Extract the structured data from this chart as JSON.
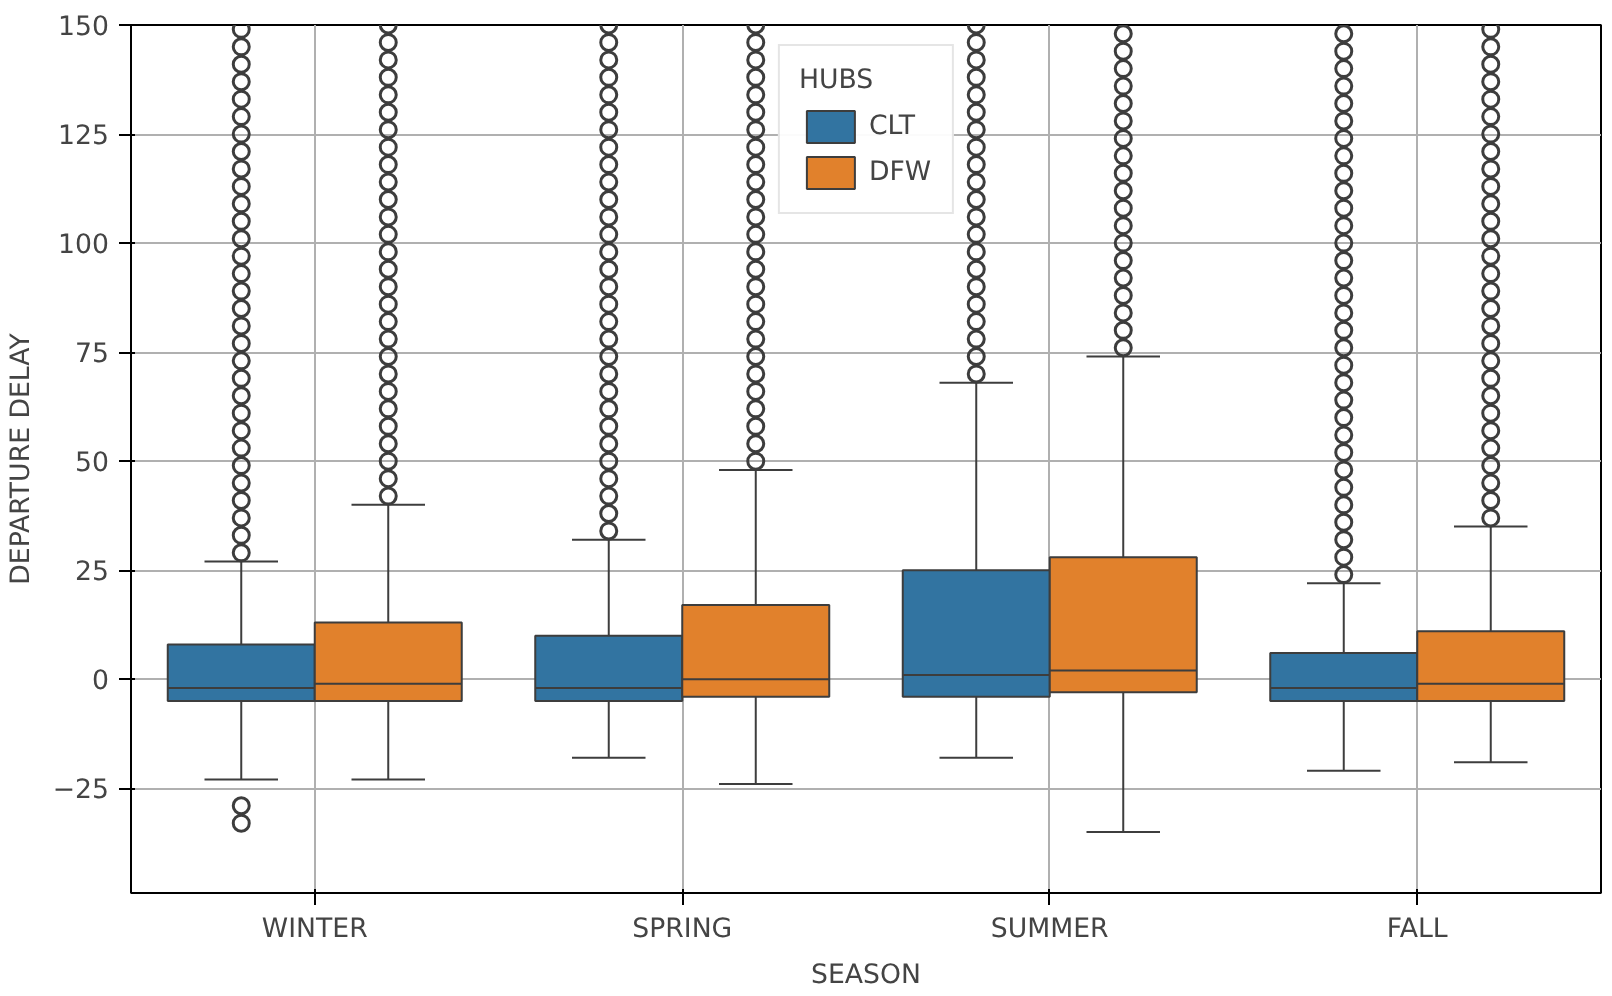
{
  "chart_data": {
    "type": "box",
    "xlabel": "SEASON",
    "ylabel": "DEPARTURE DELAY",
    "legend_title": "HUBS",
    "legend": "top",
    "grid": true,
    "categories": [
      "WINTER",
      "SPRING",
      "SUMMER",
      "FALL"
    ],
    "ylim": [
      -49,
      150
    ],
    "yticks": [
      {
        "value": -25,
        "label": "−25"
      },
      0,
      25,
      50,
      75,
      100,
      125,
      150
    ],
    "series": [
      {
        "name": "CLT",
        "color": "#3274a1",
        "boxes": [
          {
            "low": -23,
            "q1": -5,
            "median": -2,
            "q3": 8,
            "high": 27,
            "outliers": [
              -29,
              -33,
              29,
              33,
              37,
              41,
              45,
              49,
              53,
              57,
              61,
              65,
              69,
              73,
              77,
              81,
              85,
              89,
              93,
              97,
              101,
              105,
              109,
              113,
              117,
              121,
              125,
              129,
              133,
              137,
              141,
              145,
              149
            ]
          },
          {
            "low": -18,
            "q1": -5,
            "median": -2,
            "q3": 10,
            "high": 32,
            "outliers": [
              34,
              38,
              42,
              46,
              50,
              54,
              58,
              62,
              66,
              70,
              74,
              78,
              82,
              86,
              90,
              94,
              98,
              102,
              106,
              110,
              114,
              118,
              122,
              126,
              130,
              134,
              138,
              142,
              146,
              150
            ]
          },
          {
            "low": -18,
            "q1": -4,
            "median": 1,
            "q3": 25,
            "high": 68,
            "outliers": [
              70,
              74,
              78,
              82,
              86,
              90,
              94,
              98,
              102,
              106,
              110,
              114,
              118,
              122,
              126,
              130,
              134,
              138,
              142,
              146,
              150
            ]
          },
          {
            "low": -21,
            "q1": -5,
            "median": -2,
            "q3": 6,
            "high": 22,
            "outliers": [
              24,
              28,
              32,
              36,
              40,
              44,
              48,
              52,
              56,
              60,
              64,
              68,
              72,
              76,
              80,
              84,
              88,
              92,
              96,
              100,
              104,
              108,
              112,
              116,
              120,
              124,
              128,
              132,
              136,
              140,
              144,
              148
            ]
          }
        ]
      },
      {
        "name": "DFW",
        "color": "#e1812c",
        "boxes": [
          {
            "low": -23,
            "q1": -5,
            "median": -1,
            "q3": 13,
            "high": 40,
            "outliers": [
              42,
              46,
              50,
              54,
              58,
              62,
              66,
              70,
              74,
              78,
              82,
              86,
              90,
              94,
              98,
              102,
              106,
              110,
              114,
              118,
              122,
              126,
              130,
              134,
              138,
              142,
              146,
              150
            ]
          },
          {
            "low": -24,
            "q1": -4,
            "median": 0,
            "q3": 17,
            "high": 48,
            "outliers": [
              50,
              54,
              58,
              62,
              66,
              70,
              74,
              78,
              82,
              86,
              90,
              94,
              98,
              102,
              106,
              110,
              114,
              118,
              122,
              126,
              130,
              134,
              138,
              142,
              146,
              150
            ]
          },
          {
            "low": -35,
            "q1": -3,
            "median": 2,
            "q3": 28,
            "high": 74,
            "outliers": [
              76,
              80,
              84,
              88,
              92,
              96,
              100,
              104,
              108,
              112,
              116,
              120,
              124,
              128,
              132,
              136,
              140,
              144,
              148
            ]
          },
          {
            "low": -19,
            "q1": -5,
            "median": -1,
            "q3": 11,
            "high": 35,
            "outliers": [
              37,
              41,
              45,
              49,
              53,
              57,
              61,
              65,
              69,
              73,
              77,
              81,
              85,
              89,
              93,
              97,
              101,
              105,
              109,
              113,
              117,
              121,
              125,
              129,
              133,
              137,
              141,
              145,
              149
            ]
          }
        ]
      }
    ]
  }
}
